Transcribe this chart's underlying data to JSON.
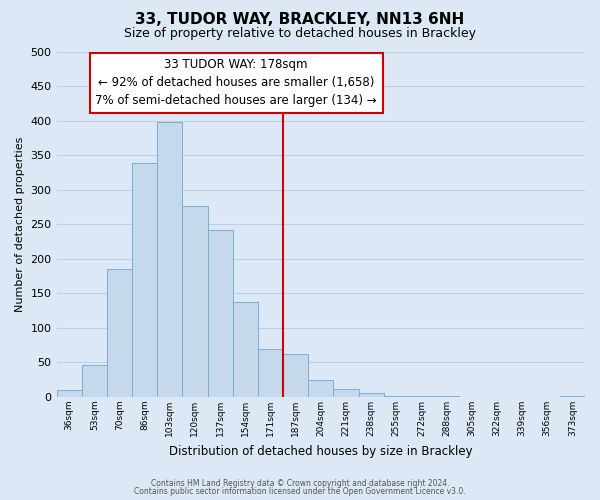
{
  "title": "33, TUDOR WAY, BRACKLEY, NN13 6NH",
  "subtitle": "Size of property relative to detached houses in Brackley",
  "xlabel": "Distribution of detached houses by size in Brackley",
  "ylabel": "Number of detached properties",
  "bin_labels": [
    "36sqm",
    "53sqm",
    "70sqm",
    "86sqm",
    "103sqm",
    "120sqm",
    "137sqm",
    "154sqm",
    "171sqm",
    "187sqm",
    "204sqm",
    "221sqm",
    "238sqm",
    "255sqm",
    "272sqm",
    "288sqm",
    "305sqm",
    "322sqm",
    "339sqm",
    "356sqm",
    "373sqm"
  ],
  "bin_values": [
    10,
    47,
    185,
    338,
    398,
    277,
    242,
    137,
    70,
    62,
    25,
    12,
    6,
    2,
    1,
    1,
    0,
    0,
    0,
    0,
    2
  ],
  "bar_color": "#c6d9ec",
  "bar_edge_color": "#7aafd4",
  "vline_color": "#cc0000",
  "annotation_title": "33 TUDOR WAY: 178sqm",
  "annotation_line1": "← 92% of detached houses are smaller (1,658)",
  "annotation_line2": "7% of semi-detached houses are larger (134) →",
  "annotation_box_color": "#ffffff",
  "annotation_box_edge": "#cc0000",
  "ylim": [
    0,
    500
  ],
  "yticks": [
    0,
    50,
    100,
    150,
    200,
    250,
    300,
    350,
    400,
    450,
    500
  ],
  "footer1": "Contains HM Land Registry data © Crown copyright and database right 2024.",
  "footer2": "Contains public sector information licensed under the Open Government Licence v3.0.",
  "background_color": "#dce8f5",
  "grid_color": "#c0cfe0"
}
